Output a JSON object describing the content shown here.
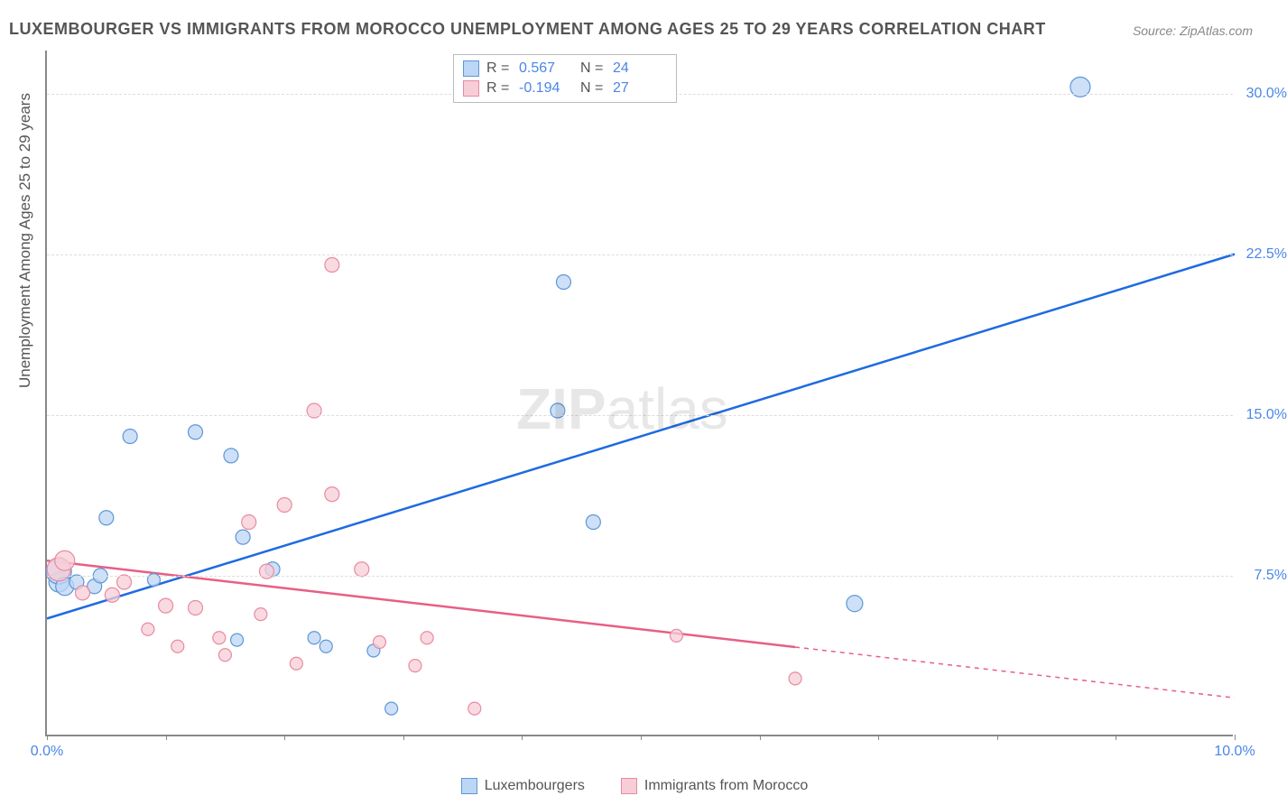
{
  "title": "LUXEMBOURGER VS IMMIGRANTS FROM MOROCCO UNEMPLOYMENT AMONG AGES 25 TO 29 YEARS CORRELATION CHART",
  "source": "Source: ZipAtlas.com",
  "y_axis_title": "Unemployment Among Ages 25 to 29 years",
  "watermark": "ZIPatlas",
  "chart": {
    "type": "scatter-correlation",
    "xlim": [
      0,
      10
    ],
    "ylim": [
      0,
      32
    ],
    "x_ticks": [
      0,
      1,
      2,
      3,
      4,
      5,
      6,
      7,
      8,
      9,
      10
    ],
    "x_tick_labels": {
      "0": "0.0%",
      "10": "10.0%"
    },
    "y_ticks": [
      7.5,
      15.0,
      22.5,
      30.0
    ],
    "y_tick_labels": [
      "7.5%",
      "15.0%",
      "22.5%",
      "30.0%"
    ],
    "background_color": "#ffffff",
    "grid_color": "#dddddd",
    "axis_color": "#888888"
  },
  "series": [
    {
      "name": "Luxembourgers",
      "color_fill": "#bcd6f5",
      "color_stroke": "#5e97d6",
      "line_color": "#1e6be0",
      "R": "0.567",
      "N": "24",
      "trend": {
        "x1": 0,
        "y1": 5.5,
        "x2": 10,
        "y2": 22.5,
        "dash_after_x": 10
      },
      "points": [
        {
          "x": 0.1,
          "y": 7.2,
          "r": 11
        },
        {
          "x": 0.1,
          "y": 7.7,
          "r": 14
        },
        {
          "x": 0.15,
          "y": 7.0,
          "r": 10
        },
        {
          "x": 0.25,
          "y": 7.2,
          "r": 8
        },
        {
          "x": 0.4,
          "y": 7.0,
          "r": 8
        },
        {
          "x": 0.45,
          "y": 7.5,
          "r": 8
        },
        {
          "x": 0.5,
          "y": 10.2,
          "r": 8
        },
        {
          "x": 0.7,
          "y": 14.0,
          "r": 8
        },
        {
          "x": 0.9,
          "y": 7.3,
          "r": 7
        },
        {
          "x": 1.25,
          "y": 14.2,
          "r": 8
        },
        {
          "x": 1.55,
          "y": 13.1,
          "r": 8
        },
        {
          "x": 1.6,
          "y": 4.5,
          "r": 7
        },
        {
          "x": 1.65,
          "y": 9.3,
          "r": 8
        },
        {
          "x": 1.9,
          "y": 7.8,
          "r": 8
        },
        {
          "x": 2.25,
          "y": 4.6,
          "r": 7
        },
        {
          "x": 2.35,
          "y": 4.2,
          "r": 7
        },
        {
          "x": 2.75,
          "y": 4.0,
          "r": 7
        },
        {
          "x": 2.9,
          "y": 1.3,
          "r": 7
        },
        {
          "x": 4.3,
          "y": 15.2,
          "r": 8
        },
        {
          "x": 4.35,
          "y": 21.2,
          "r": 8
        },
        {
          "x": 4.6,
          "y": 10.0,
          "r": 8
        },
        {
          "x": 6.8,
          "y": 6.2,
          "r": 9
        },
        {
          "x": 8.7,
          "y": 30.3,
          "r": 11
        }
      ]
    },
    {
      "name": "Immigrants from Morocco",
      "color_fill": "#f7cdd7",
      "color_stroke": "#e98aa2",
      "line_color": "#e75f85",
      "R": "-0.194",
      "N": "27",
      "trend": {
        "x1": 0,
        "y1": 8.2,
        "x2": 10,
        "y2": 1.8,
        "dash_after_x": 6.3
      },
      "points": [
        {
          "x": 0.1,
          "y": 7.8,
          "r": 13
        },
        {
          "x": 0.15,
          "y": 8.2,
          "r": 11
        },
        {
          "x": 0.3,
          "y": 6.7,
          "r": 8
        },
        {
          "x": 0.55,
          "y": 6.6,
          "r": 8
        },
        {
          "x": 0.65,
          "y": 7.2,
          "r": 8
        },
        {
          "x": 0.85,
          "y": 5.0,
          "r": 7
        },
        {
          "x": 1.0,
          "y": 6.1,
          "r": 8
        },
        {
          "x": 1.1,
          "y": 4.2,
          "r": 7
        },
        {
          "x": 1.25,
          "y": 6.0,
          "r": 8
        },
        {
          "x": 1.45,
          "y": 4.6,
          "r": 7
        },
        {
          "x": 1.5,
          "y": 3.8,
          "r": 7
        },
        {
          "x": 1.7,
          "y": 10.0,
          "r": 8
        },
        {
          "x": 1.8,
          "y": 5.7,
          "r": 7
        },
        {
          "x": 1.85,
          "y": 7.7,
          "r": 8
        },
        {
          "x": 2.0,
          "y": 10.8,
          "r": 8
        },
        {
          "x": 2.1,
          "y": 3.4,
          "r": 7
        },
        {
          "x": 2.25,
          "y": 15.2,
          "r": 8
        },
        {
          "x": 2.4,
          "y": 11.3,
          "r": 8
        },
        {
          "x": 2.4,
          "y": 22.0,
          "r": 8
        },
        {
          "x": 2.65,
          "y": 7.8,
          "r": 8
        },
        {
          "x": 2.8,
          "y": 4.4,
          "r": 7
        },
        {
          "x": 3.1,
          "y": 3.3,
          "r": 7
        },
        {
          "x": 3.2,
          "y": 4.6,
          "r": 7
        },
        {
          "x": 3.6,
          "y": 1.3,
          "r": 7
        },
        {
          "x": 5.3,
          "y": 4.7,
          "r": 7
        },
        {
          "x": 6.3,
          "y": 2.7,
          "r": 7
        }
      ]
    }
  ],
  "top_legend_labels": {
    "R": "R =",
    "N": "N ="
  },
  "bottom_legend": [
    {
      "label": "Luxembourgers",
      "fill": "#bcd6f5",
      "stroke": "#5e97d6"
    },
    {
      "label": "Immigrants from Morocco",
      "fill": "#f7cdd7",
      "stroke": "#e98aa2"
    }
  ]
}
